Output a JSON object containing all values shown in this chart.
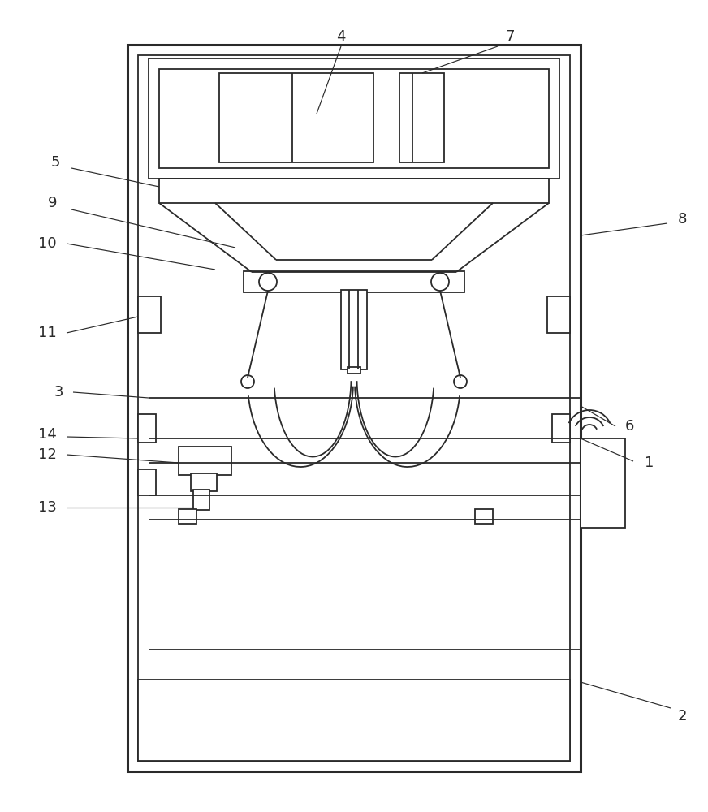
{
  "bg_color": "#ffffff",
  "line_color": "#2a2a2a",
  "lw": 1.3,
  "lw_thick": 2.2,
  "fig_w": 8.72,
  "fig_h": 10.0
}
